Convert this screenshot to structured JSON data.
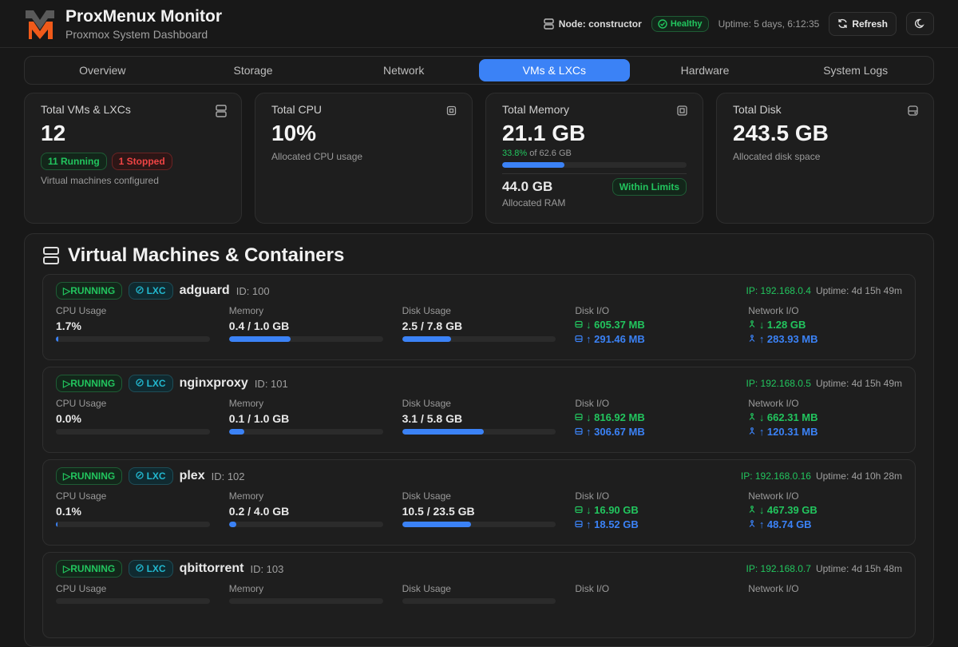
{
  "colors": {
    "accent": "#3b82f6",
    "success": "#22c55e",
    "danger": "#ef4444",
    "lxc": "#22b8cf",
    "logo_orange": "#f05a1a"
  },
  "header": {
    "title": "ProxMenux Monitor",
    "subtitle": "Proxmox System Dashboard",
    "node": "Node: constructor",
    "status": "Healthy",
    "uptime": "Uptime: 5 days, 6:12:35",
    "refresh": "Refresh",
    "icons": {
      "node": "server-icon",
      "status": "check-circle-icon",
      "refresh": "refresh-icon",
      "theme": "moon-icon"
    }
  },
  "tabs": [
    {
      "label": "Overview"
    },
    {
      "label": "Storage"
    },
    {
      "label": "Network"
    },
    {
      "label": "VMs & LXCs",
      "active": true
    },
    {
      "label": "Hardware"
    },
    {
      "label": "System Logs"
    }
  ],
  "stats": {
    "vms": {
      "label": "Total VMs & LXCs",
      "value": "12",
      "running": "11 Running",
      "stopped": "1 Stopped",
      "desc": "Virtual machines configured",
      "icon": "server-icon"
    },
    "cpu": {
      "label": "Total CPU",
      "value": "10%",
      "desc": "Allocated CPU usage",
      "icon": "cpu-icon"
    },
    "memory": {
      "label": "Total Memory",
      "value": "21.1 GB",
      "pct": "33.8%",
      "of": " of 62.6 GB",
      "fill_pct": 33.8,
      "allocated": "44.0 GB",
      "badge": "Within Limits",
      "desc": "Allocated RAM",
      "icon": "memory-icon"
    },
    "disk": {
      "label": "Total Disk",
      "value": "243.5 GB",
      "desc": "Allocated disk space",
      "icon": "hard-drive-icon"
    }
  },
  "vm_section": {
    "title": "Virtual Machines & Containers",
    "labels": {
      "cpu": "CPU Usage",
      "memory": "Memory",
      "disk": "Disk Usage",
      "diskio": "Disk I/O",
      "netio": "Network I/O"
    }
  },
  "vms": [
    {
      "status": "RUNNING",
      "type": "LXC",
      "name": "adguard",
      "id": "ID: 100",
      "ip": "IP: 192.168.0.4",
      "uptime": "Uptime: 4d 15h 49m",
      "cpu": "1.7%",
      "cpu_pct": 1.7,
      "memory": "0.4 / 1.0 GB",
      "mem_pct": 40,
      "disk": "2.5 / 7.8 GB",
      "disk_pct": 32,
      "disk_read": "↓ 605.37 MB",
      "disk_write": "↑ 291.46 MB",
      "net_in": "↓ 1.28 GB",
      "net_out": "↑ 283.93 MB"
    },
    {
      "status": "RUNNING",
      "type": "LXC",
      "name": "nginxproxy",
      "id": "ID: 101",
      "ip": "IP: 192.168.0.5",
      "uptime": "Uptime: 4d 15h 49m",
      "cpu": "0.0%",
      "cpu_pct": 0,
      "memory": "0.1 / 1.0 GB",
      "mem_pct": 10,
      "disk": "3.1 / 5.8 GB",
      "disk_pct": 53,
      "disk_read": "↓ 816.92 MB",
      "disk_write": "↑ 306.67 MB",
      "net_in": "↓ 662.31 MB",
      "net_out": "↑ 120.31 MB"
    },
    {
      "status": "RUNNING",
      "type": "LXC",
      "name": "plex",
      "id": "ID: 102",
      "ip": "IP: 192.168.0.16",
      "uptime": "Uptime: 4d 10h 28m",
      "cpu": "0.1%",
      "cpu_pct": 0.1,
      "memory": "0.2 / 4.0 GB",
      "mem_pct": 5,
      "disk": "10.5 / 23.5 GB",
      "disk_pct": 45,
      "disk_read": "↓ 16.90 GB",
      "disk_write": "↑ 18.52 GB",
      "net_in": "↓ 467.39 GB",
      "net_out": "↑ 48.74 GB"
    },
    {
      "status": "RUNNING",
      "type": "LXC",
      "name": "qbittorrent",
      "id": "ID: 103",
      "ip": "IP: 192.168.0.7",
      "uptime": "Uptime: 4d 15h 48m"
    }
  ]
}
